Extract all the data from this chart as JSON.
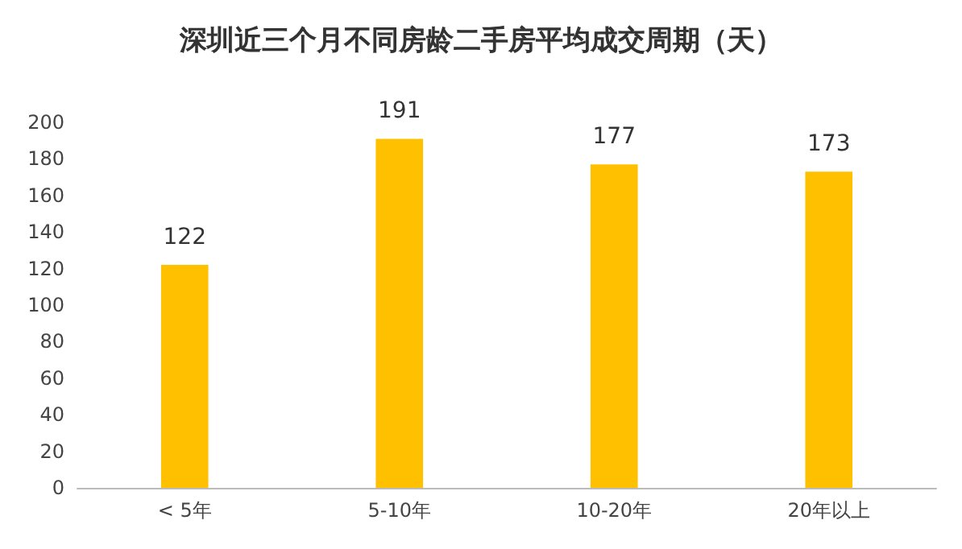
{
  "chart_data": {
    "type": "bar",
    "title": "深圳近三个月不同房龄二手房平均成交周期（天）",
    "categories": [
      "< 5年",
      "5-10年",
      "10-20年",
      "20年以上"
    ],
    "values": [
      122,
      191,
      177,
      173
    ],
    "color": "#ffc000",
    "ylim": [
      0,
      200
    ],
    "yticks": [
      0,
      20,
      40,
      60,
      80,
      100,
      120,
      140,
      160,
      180,
      200
    ],
    "grid": false,
    "data_labels": true
  }
}
